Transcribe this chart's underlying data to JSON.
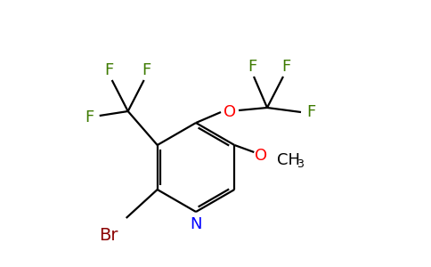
{
  "background_color": "#ffffff",
  "bond_color": "#000000",
  "atom_colors": {
    "F": "#3d7a00",
    "O": "#ff0000",
    "N": "#0000ff",
    "Br": "#8b0000",
    "C": "#000000",
    "H": "#000000"
  }
}
